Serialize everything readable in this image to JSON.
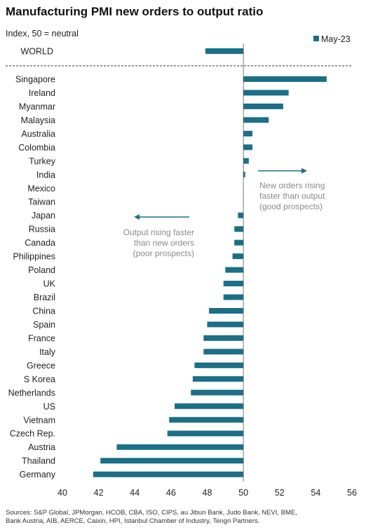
{
  "chart_data": {
    "type": "bar",
    "orientation": "horizontal",
    "title": "Manufacturing  PMI new orders to output ratio",
    "subtitle": "Index, 50 = neutral",
    "legend": {
      "position": "top-right",
      "entries": [
        "May-23"
      ]
    },
    "colors": {
      "bar": "#1b6f86",
      "arrow": "#1b6f86",
      "annotation": "#8a8a8a",
      "divider": "#333333"
    },
    "baseline": 50,
    "xlim": [
      40,
      56
    ],
    "xticks": [
      "40",
      "42",
      "44",
      "46",
      "48",
      "50",
      "52",
      "54",
      "56"
    ],
    "grid": false,
    "categories": [
      "WORLD",
      "Singapore",
      "Ireland",
      "Myanmar",
      "Malaysia",
      "Australia",
      "Colombia",
      "Turkey",
      "India",
      "Mexico",
      "Taiwan",
      "Japan",
      "Russia",
      "Canada",
      "Philippines",
      "Poland",
      "UK",
      "Brazil",
      "China",
      "Spain",
      "France",
      "Italy",
      "Greece",
      "S Korea",
      "Netherlands",
      "US",
      "Vietnam",
      "Czech Rep.",
      "Austria",
      "Thailand",
      "Germany"
    ],
    "series": [
      {
        "name": "May-23",
        "values": [
          47.9,
          54.6,
          52.5,
          52.2,
          51.4,
          50.5,
          50.5,
          50.3,
          50.1,
          50.0,
          50.0,
          49.7,
          49.5,
          49.5,
          49.4,
          49.0,
          48.9,
          48.9,
          48.1,
          48.0,
          47.8,
          47.8,
          47.3,
          47.2,
          47.1,
          46.2,
          45.9,
          45.8,
          43.0,
          42.1,
          41.7
        ]
      }
    ],
    "annotations": {
      "right": [
        "New orders rising",
        "faster than output",
        "(good prospects)"
      ],
      "left": [
        "Output  rising faster",
        "than new orders",
        "(poor prospects)"
      ]
    },
    "source": [
      "Sources: S&P Global, JPMorgan, HCOB, CBA, ISO, CIPS, au Jibun Bank, Judo Bank, NEVI, BME,",
      "Bank Austria, AIB, AERCE, Caixin, HPI, Istanbul Chamber of Industry, Tengri Partners."
    ]
  }
}
